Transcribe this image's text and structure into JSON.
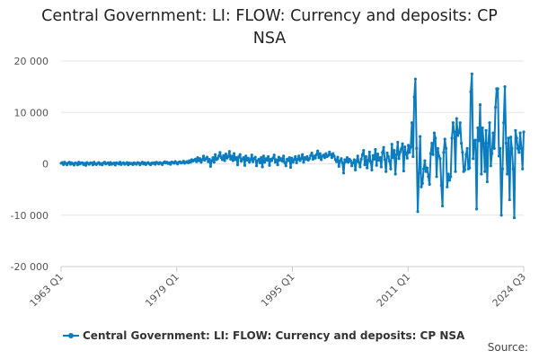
{
  "chart_data": {
    "type": "line",
    "title_line1": "Central Government: LI: FLOW: Currency and deposits: CP",
    "title_line2": "NSA",
    "xlabel": "",
    "ylabel": "",
    "ylim": [
      -20000,
      20000
    ],
    "yticks": [
      20000,
      10000,
      0,
      -10000,
      -20000
    ],
    "ytick_labels": [
      "20 000",
      "10 000",
      "0",
      "-10 000",
      "-20 000"
    ],
    "xtick_labels": [
      "1963 Q1",
      "1979 Q1",
      "1995 Q1",
      "2011 Q1",
      "2024 Q3"
    ],
    "x_start": "1963 Q1",
    "grid": true,
    "legend_position": "bottom",
    "color": "#0b7cbf",
    "series": [
      {
        "name": "Central Government: LI: FLOW: Currency and deposits: CP NSA",
        "values": [
          100,
          250,
          -150,
          300,
          50,
          -200,
          150,
          300,
          -100,
          200,
          0,
          -250,
          150,
          100,
          -200,
          300,
          -50,
          150,
          200,
          -150,
          100,
          -300,
          250,
          50,
          -100,
          200,
          150,
          -200,
          300,
          0,
          -150,
          100,
          250,
          -100,
          50,
          -200,
          150,
          300,
          -50,
          100,
          200,
          -150,
          250,
          -100,
          50,
          150,
          -250,
          200,
          100,
          -50,
          300,
          -150,
          100,
          200,
          -100,
          50,
          250,
          -200,
          150,
          0,
          100,
          -150,
          200,
          50,
          -100,
          250,
          150,
          -200,
          100,
          300,
          -50,
          200,
          -150,
          100,
          250,
          0,
          -200,
          150,
          50,
          200,
          -100,
          300,
          150,
          -50,
          250,
          100,
          -150,
          200,
          400,
          150,
          300,
          50,
          200,
          -100,
          350,
          250,
          100,
          450,
          200,
          -50,
          300,
          400,
          150,
          250,
          500,
          100,
          300,
          450,
          200,
          600,
          300,
          800,
          500,
          700,
          900,
          400,
          1200,
          600,
          1000,
          300,
          800,
          1500,
          700,
          1000,
          1300,
          400,
          900,
          -500,
          600,
          1200,
          300,
          1800,
          800,
          1000,
          1500,
          2200,
          1200,
          800,
          1600,
          600,
          1900,
          1100,
          1400,
          2400,
          900,
          1500,
          600,
          2000,
          800,
          1200,
          -200,
          1400,
          1800,
          500,
          900,
          1200,
          -300,
          1500,
          700,
          1100,
          300,
          800,
          1700,
          400,
          1000,
          1300,
          -400,
          600,
          900,
          200,
          1200,
          -600,
          1500,
          300,
          1000,
          700,
          1400,
          -300,
          900,
          600,
          1100,
          1700,
          300,
          800,
          -200,
          1300,
          700,
          1000,
          500,
          1500,
          200,
          -400,
          900,
          600,
          1200,
          -700,
          1100,
          300,
          800,
          1400,
          200,
          900,
          1500,
          600,
          1000,
          1800,
          300,
          1200,
          900,
          1400,
          700,
          1000,
          1600,
          2100,
          900,
          1500,
          1100,
          1800,
          2500,
          1200,
          2000,
          800,
          1500,
          1700,
          1200,
          2000,
          1400,
          1600,
          2300,
          1800,
          1200,
          2000,
          1500,
          800,
          400,
          1300,
          -500,
          600,
          1000,
          200,
          -1800,
          800,
          400,
          1200,
          300,
          900,
          600,
          -400,
          200,
          800,
          -1200,
          500,
          1500,
          300,
          -600,
          900,
          1800,
          2600,
          -200,
          1400,
          -800,
          700,
          2300,
          400,
          -1200,
          1600,
          900,
          2800,
          -300,
          1900,
          700,
          1200,
          -600,
          2200,
          3200,
          800,
          -1500,
          2100,
          1400,
          500,
          -1000,
          3800,
          1200,
          2600,
          -2000,
          1800,
          4200,
          1000,
          2300,
          2900,
          3900,
          -1400,
          3300,
          2000,
          1100,
          3600,
          2200,
          3300,
          8000,
          1400,
          13000,
          16500,
          3000,
          -9300,
          -1800,
          5300,
          -4500,
          -3800,
          -1000,
          600,
          -1500,
          -800,
          -2500,
          -4000,
          2000,
          4000,
          1800,
          6000,
          5000,
          -2500,
          3000,
          1500,
          1000,
          -4200,
          -8200,
          2200,
          4800,
          3000,
          -4500,
          -2000,
          -3200,
          -2500,
          5000,
          8000,
          6200,
          -1500,
          8800,
          5500,
          6000,
          8000,
          4000,
          2200,
          -1500,
          -1200,
          1800,
          3000,
          -1000,
          -800,
          14000,
          17500,
          1000,
          4500,
          4600,
          -8800,
          7000,
          4500,
          11500,
          -2000,
          7000,
          4000,
          -1500,
          6500,
          -3500,
          4000,
          8000,
          -400,
          2000,
          6000,
          3000,
          11000,
          14600,
          14600,
          1500,
          3000,
          -10000,
          -1000,
          8000,
          15000,
          4000,
          -2000,
          5000,
          -7000,
          5200,
          3000,
          -1000,
          -10500,
          6500,
          5000,
          3000,
          2200,
          6000,
          3000,
          -1000,
          6200
        ]
      }
    ]
  },
  "source_label": "Source:"
}
